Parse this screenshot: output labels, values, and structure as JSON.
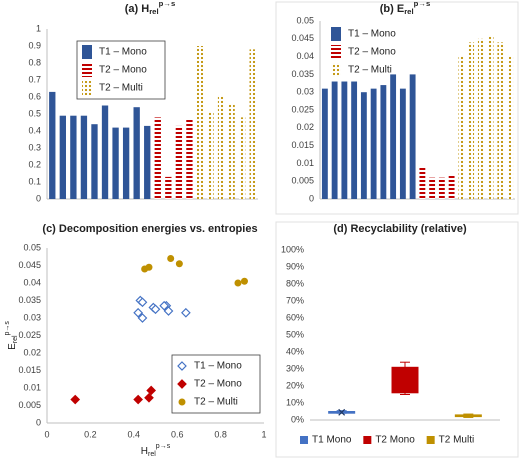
{
  "chart_data": [
    {
      "type": "bar",
      "title": {
        "main": "(a) H",
        "sub": "rel",
        "sup": "p→s"
      },
      "categories": [
        null,
        null,
        null,
        null,
        null,
        null,
        null,
        null,
        null,
        null,
        null,
        null,
        null,
        null,
        null,
        null,
        null,
        null,
        null,
        null
      ],
      "series": [
        {
          "name": "T1 – Mono",
          "color": "#2f5597",
          "pattern": "solid",
          "values": [
            0.63,
            0.49,
            0.49,
            0.49,
            0.44,
            0.55,
            0.42,
            0.42,
            0.54,
            0.43,
            null,
            null,
            null,
            null,
            null,
            null,
            null,
            null,
            null,
            null
          ]
        },
        {
          "name": "T2 – Mono",
          "color": "#c00000",
          "pattern": "stripes",
          "values": [
            null,
            null,
            null,
            null,
            null,
            null,
            null,
            null,
            null,
            null,
            0.48,
            0.13,
            0.43,
            0.47,
            null,
            null,
            null,
            null,
            null,
            null
          ]
        },
        {
          "name": "T2 – Multi",
          "color": "#bf9000",
          "pattern": "dots",
          "values": [
            null,
            null,
            null,
            null,
            null,
            null,
            null,
            null,
            null,
            null,
            null,
            null,
            null,
            null,
            0.9,
            0.51,
            0.61,
            0.56,
            0.48,
            0.88
          ]
        }
      ],
      "ylim": [
        0,
        1
      ],
      "yticks": [
        0,
        0.1,
        0.2,
        0.3,
        0.4,
        0.5,
        0.6,
        0.7,
        0.8,
        0.9,
        1
      ],
      "grid": false,
      "legend": "top-left"
    },
    {
      "type": "bar",
      "title": {
        "main": "(b) E",
        "sub": "rel",
        "sup": "p→s"
      },
      "categories": [
        null,
        null,
        null,
        null,
        null,
        null,
        null,
        null,
        null,
        null,
        null,
        null,
        null,
        null,
        null,
        null,
        null,
        null,
        null,
        null
      ],
      "series": [
        {
          "name": "T1 – Mono",
          "color": "#2f5597",
          "pattern": "solid",
          "values": [
            0.031,
            0.033,
            0.033,
            0.033,
            0.03,
            0.031,
            0.032,
            0.035,
            0.031,
            0.035,
            null,
            null,
            null,
            null,
            null,
            null,
            null,
            null,
            null,
            null
          ]
        },
        {
          "name": "T2 – Mono",
          "color": "#c00000",
          "pattern": "stripes",
          "values": [
            null,
            null,
            null,
            null,
            null,
            null,
            null,
            null,
            null,
            null,
            0.009,
            0.006,
            0.006,
            0.007,
            null,
            null,
            null,
            null,
            null,
            null
          ]
        },
        {
          "name": "T2 – Multi",
          "color": "#bf9000",
          "pattern": "dots",
          "values": [
            null,
            null,
            null,
            null,
            null,
            null,
            null,
            null,
            null,
            null,
            null,
            null,
            null,
            null,
            0.04,
            0.044,
            0.045,
            0.046,
            0.044,
            0.04
          ]
        }
      ],
      "ylim": [
        0,
        0.05
      ],
      "yticks": [
        0,
        0.005,
        0.01,
        0.015,
        0.02,
        0.025,
        0.03,
        0.035,
        0.04,
        0.045,
        0.05
      ],
      "grid": false,
      "legend": "top-left"
    },
    {
      "type": "scatter",
      "title": "(c) Decomposition energies vs. entropies",
      "xlabel": {
        "main": "H",
        "sub": "rel",
        "sup": "p→s"
      },
      "ylabel": {
        "main": "E",
        "sub": "rel",
        "sup": "p→s"
      },
      "series": [
        {
          "name": "T1 – Mono",
          "color": "#4472c4",
          "marker": "diamond-open",
          "x": [
            0.43,
            0.44,
            0.42,
            0.44,
            0.49,
            0.5,
            0.55,
            0.56,
            0.54,
            0.64
          ],
          "values": [
            0.035,
            0.0345,
            0.0315,
            0.03,
            0.033,
            0.0325,
            0.0335,
            0.032,
            0.0335,
            0.0315
          ]
        },
        {
          "name": "T2 – Mono",
          "color": "#c00000",
          "marker": "diamond",
          "x": [
            0.13,
            0.42,
            0.47,
            0.48
          ],
          "values": [
            0.0067,
            0.0067,
            0.0072,
            0.0093
          ]
        },
        {
          "name": "T2 – Multi",
          "color": "#bf9000",
          "marker": "circle",
          "x": [
            0.45,
            0.47,
            0.57,
            0.61,
            0.88,
            0.91
          ],
          "values": [
            0.044,
            0.0445,
            0.047,
            0.0455,
            0.04,
            0.0405
          ]
        }
      ],
      "xlim": [
        0,
        1
      ],
      "xticks": [
        0,
        0.2,
        0.4,
        0.6,
        0.8,
        1
      ],
      "ylim": [
        0,
        0.05
      ],
      "yticks": [
        0,
        0.005,
        0.01,
        0.015,
        0.02,
        0.025,
        0.03,
        0.035,
        0.04,
        0.045,
        0.05
      ],
      "grid": false,
      "legend": "bottom-right"
    },
    {
      "type": "box",
      "title": "(d) Recyclability (relative)",
      "series": [
        {
          "name": "T1 Mono",
          "color": "#4472c4",
          "min": 4,
          "q1": 4,
          "median": 4.5,
          "q3": 5,
          "max": 5.5,
          "mean": 4.5
        },
        {
          "name": "T2 Mono",
          "color": "#c00000",
          "min": 15,
          "q1": 16,
          "median": 20,
          "q3": 31,
          "max": 34
        },
        {
          "name": "T2 Multi",
          "color": "#bf9000",
          "min": 1.5,
          "q1": 2,
          "median": 2.5,
          "q3": 3,
          "max": 3.5
        }
      ],
      "ylim": [
        0,
        100
      ],
      "yticks": [
        {
          "value": 0,
          "label": "0%"
        },
        {
          "value": 10,
          "label": "10%"
        },
        {
          "value": 20,
          "label": "20%"
        },
        {
          "value": 30,
          "label": "30%"
        },
        {
          "value": 40,
          "label": "40%"
        },
        {
          "value": 50,
          "label": "50%"
        },
        {
          "value": 60,
          "label": "60%"
        },
        {
          "value": 70,
          "label": "70%"
        },
        {
          "value": 80,
          "label": "80%"
        },
        {
          "value": 90,
          "label": "90%"
        },
        {
          "value": 100,
          "label": "100%"
        }
      ],
      "grid": false,
      "legend": "bottom"
    }
  ]
}
